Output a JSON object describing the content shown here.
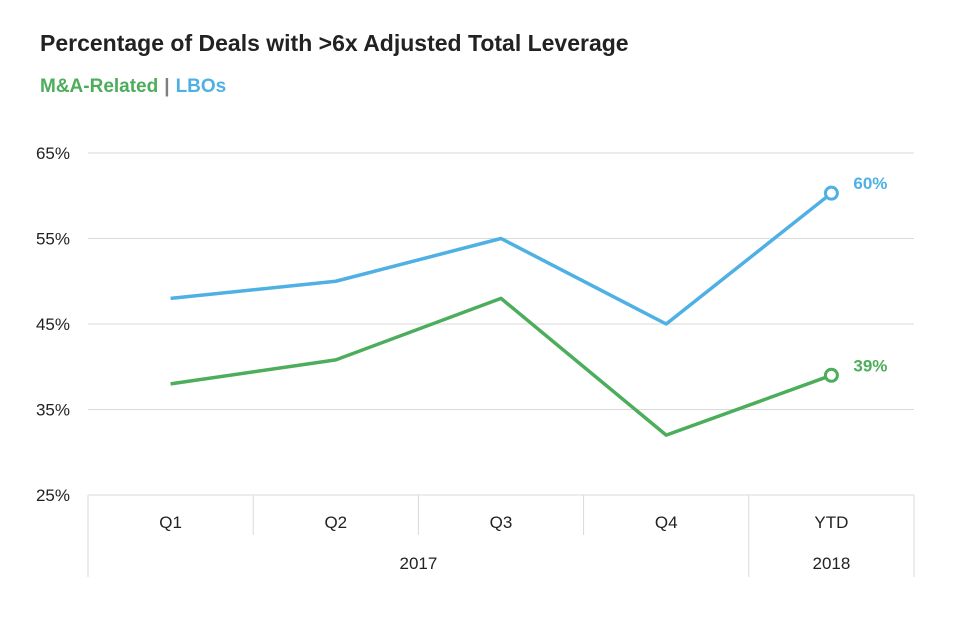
{
  "chart_data": {
    "type": "line",
    "title": "Percentage of Deals with >6x Adjusted Total Leverage",
    "categories": [
      "Q1",
      "Q2",
      "Q3",
      "Q4",
      "YTD"
    ],
    "groups": [
      {
        "label": "2017",
        "categories": [
          "Q1",
          "Q2",
          "Q3",
          "Q4"
        ]
      },
      {
        "label": "2018",
        "categories": [
          "YTD"
        ]
      }
    ],
    "series": [
      {
        "name": "M&A-Related",
        "color": "#4cad5b",
        "values": [
          38,
          40.8,
          48,
          32,
          39
        ],
        "end_label": "39%"
      },
      {
        "name": "LBOs",
        "color": "#4fb0e4",
        "values": [
          48,
          50,
          55,
          45,
          60.3
        ],
        "end_label": "60%"
      }
    ],
    "legend_separator": "|",
    "ylim": [
      25,
      65
    ],
    "yticks": [
      "65%",
      "55%",
      "45%",
      "35%",
      "25%"
    ],
    "ytick_values": [
      65,
      55,
      45,
      35,
      25
    ],
    "grid": true,
    "legend_position": "top-left"
  }
}
